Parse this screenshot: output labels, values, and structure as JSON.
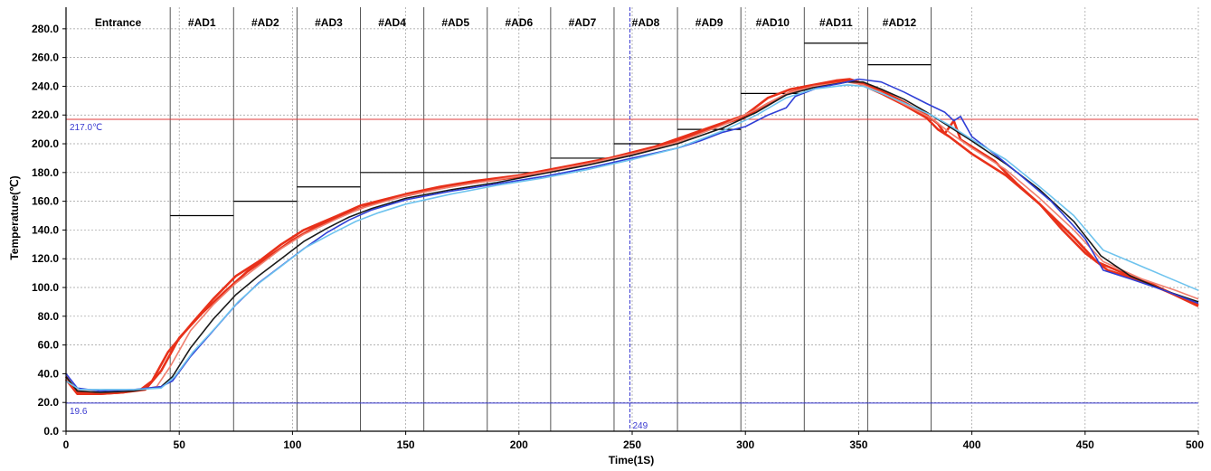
{
  "chart_data": {
    "type": "line",
    "xlabel": "Time(1S)",
    "ylabel": "Temperature(℃)",
    "xlim": [
      0,
      500
    ],
    "ylim": [
      0,
      295
    ],
    "xticks": [
      0,
      50,
      100,
      150,
      200,
      250,
      300,
      350,
      400,
      450,
      500
    ],
    "xtick_labels": [
      "0",
      "50",
      "100",
      "150",
      "200",
      "250",
      "300",
      "350",
      "400",
      "450",
      "500"
    ],
    "yticks": [
      0,
      20,
      40,
      60,
      80,
      100,
      120,
      140,
      160,
      180,
      200,
      220,
      240,
      260,
      280
    ],
    "ytick_labels": [
      "0.0",
      "20.0",
      "40.0",
      "60.0",
      "80.0",
      "100.0",
      "120.0",
      "140.0",
      "160.0",
      "180.0",
      "200.0",
      "220.0",
      "240.0",
      "260.0",
      "280.0"
    ],
    "grid": true,
    "zone_boundaries": [
      46,
      74,
      102,
      130,
      158,
      186,
      214,
      242,
      270,
      298,
      326,
      354,
      382
    ],
    "zones": [
      {
        "label": "Entrance",
        "x0": 0,
        "x1": 46,
        "setpoint": null
      },
      {
        "label": "#AD1",
        "x0": 46,
        "x1": 74,
        "setpoint": 150
      },
      {
        "label": "#AD2",
        "x0": 74,
        "x1": 102,
        "setpoint": 160
      },
      {
        "label": "#AD3",
        "x0": 102,
        "x1": 130,
        "setpoint": 170
      },
      {
        "label": "#AD4",
        "x0": 130,
        "x1": 158,
        "setpoint": 180
      },
      {
        "label": "#AD5",
        "x0": 158,
        "x1": 186,
        "setpoint": 180
      },
      {
        "label": "#AD6",
        "x0": 186,
        "x1": 214,
        "setpoint": 180
      },
      {
        "label": "#AD7",
        "x0": 214,
        "x1": 242,
        "setpoint": 190
      },
      {
        "label": "#AD8",
        "x0": 242,
        "x1": 270,
        "setpoint": 200
      },
      {
        "label": "#AD9",
        "x0": 270,
        "x1": 298,
        "setpoint": 210
      },
      {
        "label": "#AD10",
        "x0": 298,
        "x1": 326,
        "setpoint": 235
      },
      {
        "label": "#AD11",
        "x0": 326,
        "x1": 354,
        "setpoint": 270
      },
      {
        "label": "#AD12",
        "x0": 354,
        "x1": 382,
        "setpoint": 255
      }
    ],
    "reference_lines": [
      {
        "orientation": "horizontal",
        "value": 217,
        "label": "217.0℃",
        "color": "#e03a3a"
      },
      {
        "orientation": "horizontal",
        "value": 19.6,
        "label": "19.6",
        "color": "#3a3ad0"
      },
      {
        "orientation": "vertical",
        "value": 249,
        "label": "249",
        "color": "#3a3ad0"
      }
    ],
    "series": [
      {
        "color": "#e8311a",
        "points": [
          [
            0,
            38
          ],
          [
            5,
            27
          ],
          [
            15,
            26
          ],
          [
            25,
            27
          ],
          [
            33,
            29
          ],
          [
            38,
            35
          ],
          [
            45,
            55
          ],
          [
            55,
            74
          ],
          [
            65,
            92
          ],
          [
            75,
            108
          ],
          [
            85,
            118
          ],
          [
            95,
            130
          ],
          [
            105,
            140
          ],
          [
            120,
            150
          ],
          [
            130,
            157
          ],
          [
            140,
            161
          ],
          [
            150,
            165
          ],
          [
            165,
            170
          ],
          [
            180,
            174
          ],
          [
            200,
            178
          ],
          [
            220,
            184
          ],
          [
            240,
            190
          ],
          [
            260,
            198
          ],
          [
            280,
            209
          ],
          [
            300,
            220
          ],
          [
            310,
            232
          ],
          [
            320,
            238
          ],
          [
            330,
            241
          ],
          [
            340,
            244
          ],
          [
            346,
            245
          ],
          [
            350,
            243
          ],
          [
            360,
            237
          ],
          [
            370,
            229
          ],
          [
            380,
            220
          ],
          [
            385,
            214
          ],
          [
            388,
            207
          ],
          [
            392,
            216
          ],
          [
            395,
            203
          ],
          [
            410,
            188
          ],
          [
            420,
            172
          ],
          [
            430,
            158
          ],
          [
            440,
            140
          ],
          [
            450,
            124
          ],
          [
            460,
            112
          ],
          [
            480,
            102
          ],
          [
            500,
            87
          ]
        ]
      },
      {
        "color": "#e8311a",
        "points": [
          [
            0,
            36
          ],
          [
            5,
            26
          ],
          [
            15,
            26
          ],
          [
            25,
            27
          ],
          [
            35,
            29
          ],
          [
            42,
            42
          ],
          [
            50,
            65
          ],
          [
            60,
            82
          ],
          [
            70,
            97
          ],
          [
            80,
            111
          ],
          [
            90,
            122
          ],
          [
            100,
            133
          ],
          [
            110,
            142
          ],
          [
            125,
            152
          ],
          [
            135,
            158
          ],
          [
            150,
            164
          ],
          [
            165,
            169
          ],
          [
            180,
            173
          ],
          [
            200,
            177
          ],
          [
            220,
            183
          ],
          [
            240,
            189
          ],
          [
            260,
            197
          ],
          [
            280,
            208
          ],
          [
            300,
            219
          ],
          [
            310,
            228
          ],
          [
            320,
            236
          ],
          [
            335,
            242
          ],
          [
            345,
            244
          ],
          [
            350,
            242
          ],
          [
            360,
            235
          ],
          [
            370,
            227
          ],
          [
            380,
            218
          ],
          [
            385,
            210
          ],
          [
            390,
            205
          ],
          [
            400,
            193
          ],
          [
            415,
            178
          ],
          [
            430,
            158
          ],
          [
            445,
            135
          ],
          [
            455,
            118
          ],
          [
            470,
            108
          ],
          [
            485,
            98
          ],
          [
            500,
            88
          ]
        ]
      },
      {
        "color": "#f08070",
        "points": [
          [
            0,
            37
          ],
          [
            6,
            28
          ],
          [
            15,
            27
          ],
          [
            30,
            28
          ],
          [
            40,
            31
          ],
          [
            46,
            45
          ],
          [
            55,
            70
          ],
          [
            65,
            88
          ],
          [
            75,
            103
          ],
          [
            85,
            115
          ],
          [
            95,
            127
          ],
          [
            105,
            137
          ],
          [
            120,
            148
          ],
          [
            130,
            155
          ],
          [
            150,
            164
          ],
          [
            170,
            170
          ],
          [
            190,
            175
          ],
          [
            210,
            180
          ],
          [
            230,
            186
          ],
          [
            250,
            193
          ],
          [
            270,
            201
          ],
          [
            290,
            213
          ],
          [
            305,
            224
          ],
          [
            318,
            235
          ],
          [
            330,
            240
          ],
          [
            345,
            243
          ],
          [
            352,
            241
          ],
          [
            362,
            234
          ],
          [
            372,
            226
          ],
          [
            382,
            218
          ],
          [
            390,
            208
          ],
          [
            400,
            197
          ],
          [
            415,
            182
          ],
          [
            430,
            162
          ],
          [
            445,
            140
          ],
          [
            458,
            118
          ],
          [
            475,
            106
          ],
          [
            490,
            98
          ],
          [
            500,
            92
          ]
        ]
      },
      {
        "color": "#1a1a1a",
        "points": [
          [
            0,
            38
          ],
          [
            5,
            28
          ],
          [
            15,
            27
          ],
          [
            30,
            28
          ],
          [
            42,
            31
          ],
          [
            47,
            38
          ],
          [
            55,
            58
          ],
          [
            65,
            78
          ],
          [
            75,
            95
          ],
          [
            85,
            108
          ],
          [
            95,
            120
          ],
          [
            105,
            132
          ],
          [
            115,
            141
          ],
          [
            125,
            149
          ],
          [
            135,
            155
          ],
          [
            150,
            162
          ],
          [
            170,
            168
          ],
          [
            190,
            173
          ],
          [
            210,
            179
          ],
          [
            230,
            185
          ],
          [
            250,
            192
          ],
          [
            270,
            200
          ],
          [
            290,
            211
          ],
          [
            305,
            222
          ],
          [
            318,
            234
          ],
          [
            330,
            239
          ],
          [
            345,
            243
          ],
          [
            352,
            243
          ],
          [
            360,
            238
          ],
          [
            370,
            231
          ],
          [
            380,
            222
          ],
          [
            388,
            214
          ],
          [
            400,
            202
          ],
          [
            415,
            186
          ],
          [
            430,
            168
          ],
          [
            445,
            146
          ],
          [
            457,
            122
          ],
          [
            470,
            108
          ],
          [
            485,
            98
          ],
          [
            500,
            90
          ]
        ]
      },
      {
        "color": "#2f3fd6",
        "points": [
          [
            0,
            40
          ],
          [
            5,
            30
          ],
          [
            15,
            28
          ],
          [
            30,
            29
          ],
          [
            42,
            31
          ],
          [
            47,
            35
          ],
          [
            55,
            52
          ],
          [
            65,
            70
          ],
          [
            75,
            88
          ],
          [
            85,
            103
          ],
          [
            95,
            115
          ],
          [
            105,
            127
          ],
          [
            115,
            138
          ],
          [
            125,
            147
          ],
          [
            135,
            154
          ],
          [
            150,
            161
          ],
          [
            170,
            167
          ],
          [
            190,
            172
          ],
          [
            210,
            177
          ],
          [
            230,
            183
          ],
          [
            250,
            190
          ],
          [
            270,
            197
          ],
          [
            280,
            202
          ],
          [
            290,
            208
          ],
          [
            300,
            212
          ],
          [
            310,
            220
          ],
          [
            318,
            225
          ],
          [
            322,
            233
          ],
          [
            332,
            239
          ],
          [
            342,
            242
          ],
          [
            350,
            245
          ],
          [
            360,
            243
          ],
          [
            370,
            236
          ],
          [
            380,
            228
          ],
          [
            388,
            222
          ],
          [
            392,
            216
          ],
          [
            395,
            219
          ],
          [
            400,
            205
          ],
          [
            410,
            193
          ],
          [
            420,
            180
          ],
          [
            435,
            160
          ],
          [
            450,
            134
          ],
          [
            458,
            112
          ],
          [
            470,
            106
          ],
          [
            485,
            98
          ],
          [
            500,
            89
          ]
        ]
      },
      {
        "color": "#6ec3ee",
        "points": [
          [
            0,
            35
          ],
          [
            6,
            29
          ],
          [
            15,
            29
          ],
          [
            30,
            29
          ],
          [
            42,
            30
          ],
          [
            48,
            38
          ],
          [
            56,
            55
          ],
          [
            66,
            72
          ],
          [
            76,
            90
          ],
          [
            86,
            104
          ],
          [
            96,
            116
          ],
          [
            106,
            128
          ],
          [
            118,
            138
          ],
          [
            128,
            146
          ],
          [
            138,
            152
          ],
          [
            150,
            158
          ],
          [
            170,
            165
          ],
          [
            190,
            171
          ],
          [
            210,
            176
          ],
          [
            230,
            182
          ],
          [
            250,
            189
          ],
          [
            270,
            197
          ],
          [
            290,
            209
          ],
          [
            305,
            220
          ],
          [
            318,
            232
          ],
          [
            330,
            238
          ],
          [
            345,
            241
          ],
          [
            352,
            240
          ],
          [
            362,
            234
          ],
          [
            372,
            227
          ],
          [
            382,
            220
          ],
          [
            390,
            213
          ],
          [
            400,
            203
          ],
          [
            415,
            189
          ],
          [
            430,
            170
          ],
          [
            445,
            150
          ],
          [
            458,
            126
          ],
          [
            470,
            118
          ],
          [
            485,
            108
          ],
          [
            500,
            98
          ]
        ]
      }
    ]
  }
}
